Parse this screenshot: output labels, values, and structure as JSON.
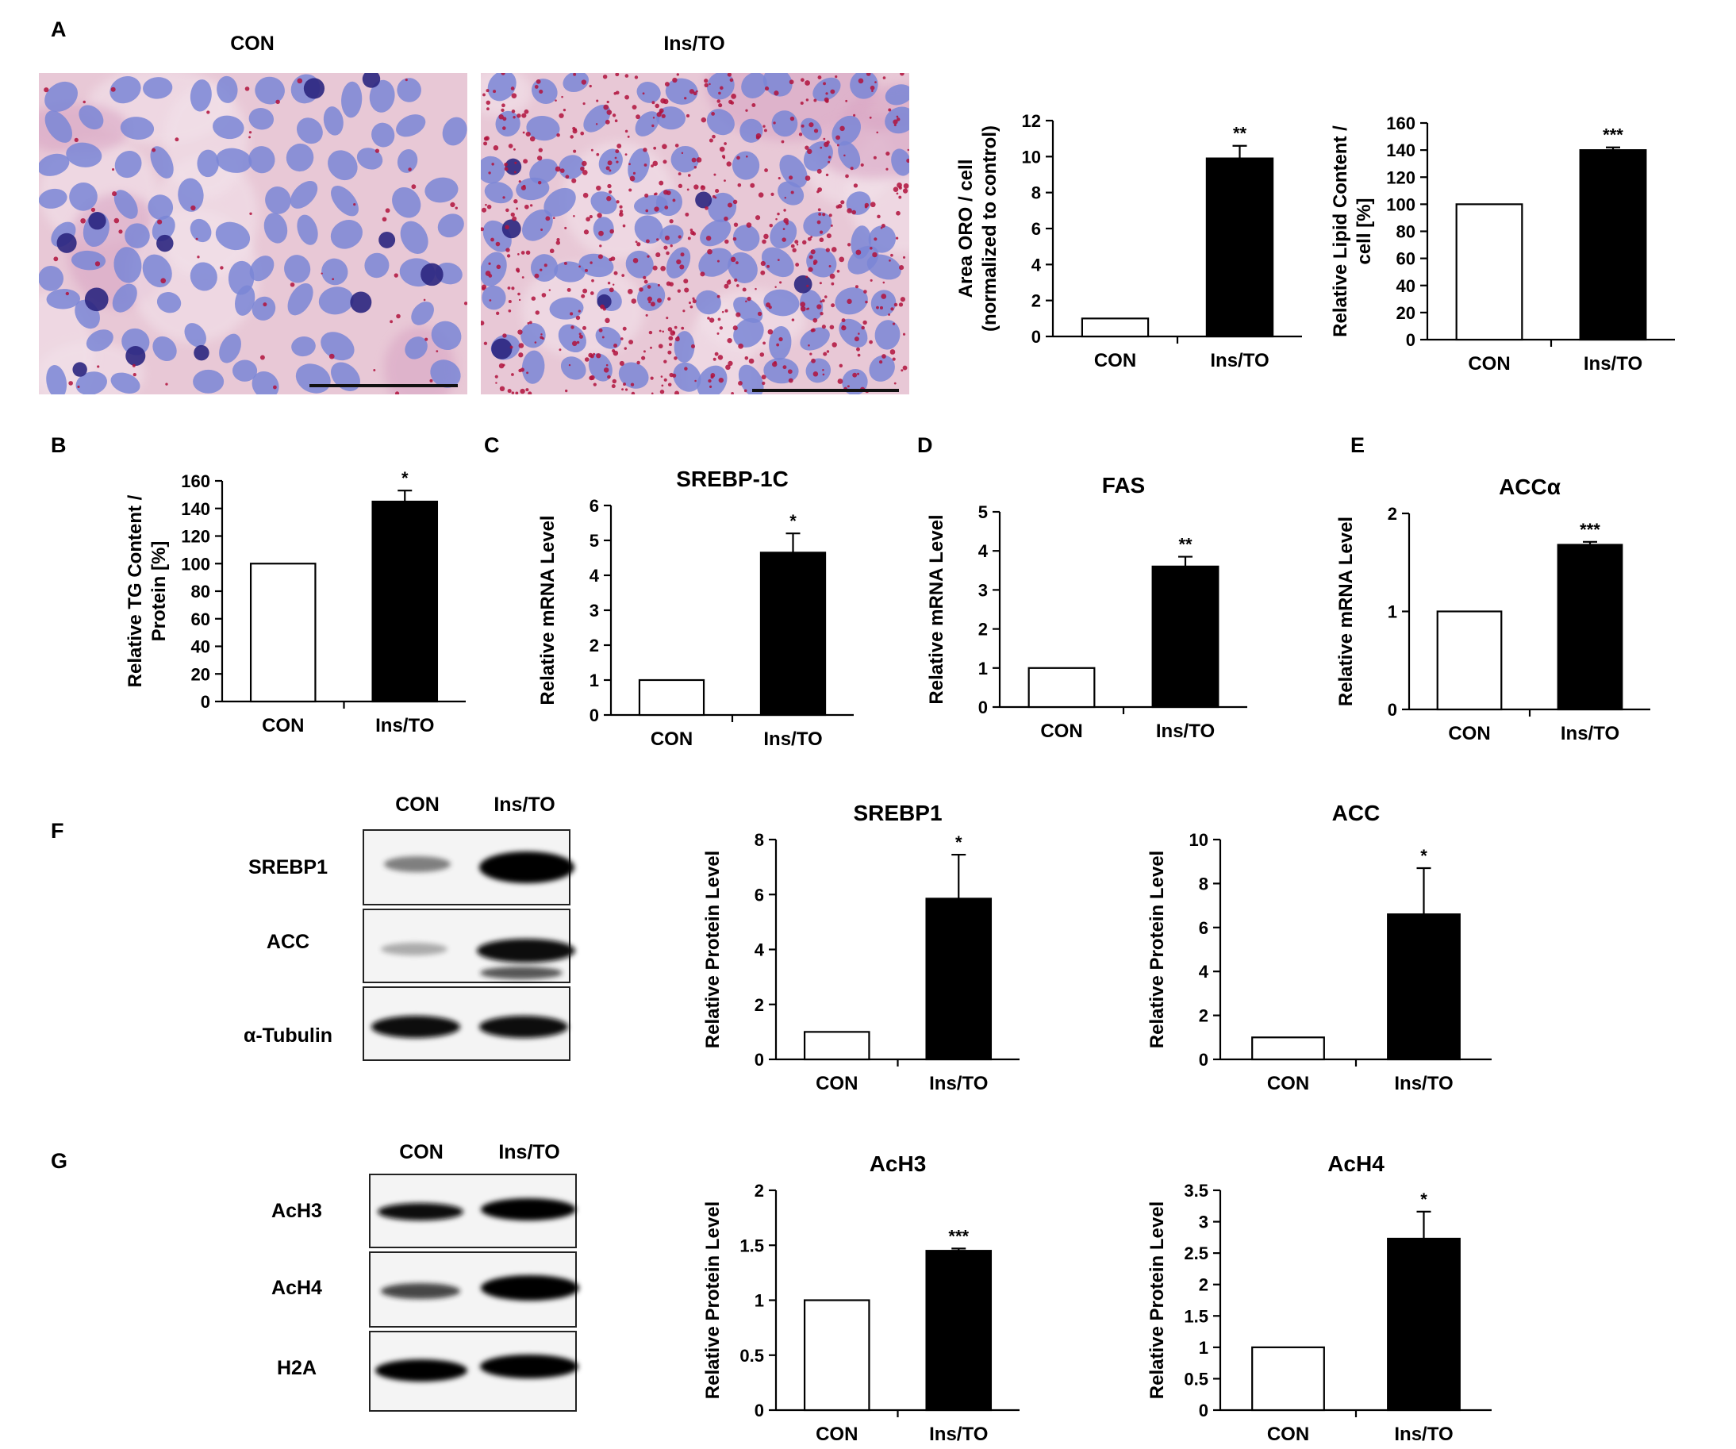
{
  "panels": {
    "A": "A",
    "B": "B",
    "C": "C",
    "D": "D",
    "E": "E",
    "F": "F",
    "G": "G"
  },
  "images": {
    "left_label": "CON",
    "right_label": "Ins/TO",
    "colors": {
      "background": "#e8c8d6",
      "nuclei": "#7a86d6",
      "lipid": "#b0123c",
      "scale_bar": "#111111"
    }
  },
  "blots": {
    "F": {
      "lanes": [
        "CON",
        "Ins/TO"
      ],
      "proteins": [
        "SREBP1",
        "ACC",
        "α-Tubulin"
      ]
    },
    "G": {
      "lanes": [
        "CON",
        "Ins/TO"
      ],
      "proteins": [
        "AcH3",
        "AcH4",
        "H2A"
      ]
    }
  },
  "colors": {
    "con_bar": "#ffffff",
    "treat_bar": "#000000",
    "axis": "#000000"
  },
  "chart_data": [
    {
      "id": "A-oro",
      "type": "bar",
      "title": "",
      "ylabel": [
        "Area ORO / cell",
        "(normalized to control)"
      ],
      "categories": [
        "CON",
        "Ins/TO"
      ],
      "values": [
        1,
        9.9
      ],
      "errors": [
        0,
        0.7
      ],
      "ylim": [
        0,
        12
      ],
      "yticks": [
        "0",
        "2",
        "4",
        "6",
        "8",
        "10",
        "12"
      ],
      "significance": [
        "",
        "**"
      ]
    },
    {
      "id": "A-lipid",
      "type": "bar",
      "title": "",
      "ylabel": [
        "Relative Lipid Content /",
        "cell [%]"
      ],
      "categories": [
        "CON",
        "Ins/TO"
      ],
      "values": [
        100,
        140
      ],
      "errors": [
        0,
        2
      ],
      "ylim": [
        0,
        160
      ],
      "yticks": [
        "0",
        "20",
        "40",
        "60",
        "80",
        "100",
        "120",
        "140",
        "160"
      ],
      "significance": [
        "",
        "***"
      ]
    },
    {
      "id": "B",
      "type": "bar",
      "title": "",
      "ylabel": [
        "Relative TG Content /",
        "Protein [%]"
      ],
      "categories": [
        "CON",
        "Ins/TO"
      ],
      "values": [
        100,
        145
      ],
      "errors": [
        0,
        8
      ],
      "ylim": [
        0,
        160
      ],
      "yticks": [
        "0",
        "20",
        "40",
        "60",
        "80",
        "100",
        "120",
        "140",
        "160"
      ],
      "significance": [
        "",
        "*"
      ]
    },
    {
      "id": "C",
      "type": "bar",
      "title": "SREBP-1C",
      "ylabel": [
        "Relative mRNA Level"
      ],
      "categories": [
        "CON",
        "Ins/TO"
      ],
      "values": [
        1,
        4.65
      ],
      "errors": [
        0,
        0.55
      ],
      "ylim": [
        0,
        6
      ],
      "yticks": [
        "0",
        "1",
        "2",
        "3",
        "4",
        "5",
        "6"
      ],
      "significance": [
        "",
        "*"
      ]
    },
    {
      "id": "D",
      "type": "bar",
      "title": "FAS",
      "ylabel": [
        "Relative mRNA Level"
      ],
      "categories": [
        "CON",
        "Ins/TO"
      ],
      "values": [
        1,
        3.6
      ],
      "errors": [
        0,
        0.25
      ],
      "ylim": [
        0,
        5
      ],
      "yticks": [
        "0",
        "1",
        "2",
        "3",
        "4",
        "5"
      ],
      "significance": [
        "",
        "**"
      ]
    },
    {
      "id": "E",
      "type": "bar",
      "title": "ACCα",
      "ylabel": [
        "Relative mRNA Level"
      ],
      "categories": [
        "CON",
        "Ins/TO"
      ],
      "values": [
        1,
        1.68
      ],
      "errors": [
        0,
        0.03
      ],
      "ylim": [
        0,
        2
      ],
      "yticks": [
        "0",
        "1",
        "2"
      ],
      "significance": [
        "",
        "***"
      ]
    },
    {
      "id": "F-srebp1",
      "type": "bar",
      "title": "SREBP1",
      "ylabel": [
        "Relative Protein Level"
      ],
      "categories": [
        "CON",
        "Ins/TO"
      ],
      "values": [
        1,
        5.85
      ],
      "errors": [
        0,
        1.6
      ],
      "ylim": [
        0,
        8
      ],
      "yticks": [
        "0",
        "2",
        "4",
        "6",
        "8"
      ],
      "significance": [
        "",
        "*"
      ]
    },
    {
      "id": "F-acc",
      "type": "bar",
      "title": "ACC",
      "ylabel": [
        "Relative Protein Level"
      ],
      "categories": [
        "CON",
        "Ins/TO"
      ],
      "values": [
        1,
        6.6
      ],
      "errors": [
        0,
        2.1
      ],
      "ylim": [
        0,
        10
      ],
      "yticks": [
        "0",
        "2",
        "4",
        "6",
        "8",
        "10"
      ],
      "significance": [
        "",
        "*"
      ]
    },
    {
      "id": "G-ach3",
      "type": "bar",
      "title": "AcH3",
      "ylabel": [
        "Relative Protein Level"
      ],
      "categories": [
        "CON",
        "Ins/TO"
      ],
      "values": [
        1,
        1.45
      ],
      "errors": [
        0,
        0.02
      ],
      "ylim": [
        0,
        2
      ],
      "yticks": [
        "0",
        "0.5",
        "1",
        "1.5",
        "2"
      ],
      "significance": [
        "",
        "***"
      ]
    },
    {
      "id": "G-ach4",
      "type": "bar",
      "title": "AcH4",
      "ylabel": [
        "Relative Protein Level"
      ],
      "categories": [
        "CON",
        "Ins/TO"
      ],
      "values": [
        1,
        2.73
      ],
      "errors": [
        0,
        0.43
      ],
      "ylim": [
        0,
        3.5
      ],
      "yticks": [
        "0",
        "0.5",
        "1",
        "1.5",
        "2",
        "2.5",
        "3",
        "3.5"
      ],
      "significance": [
        "",
        "*"
      ]
    }
  ]
}
